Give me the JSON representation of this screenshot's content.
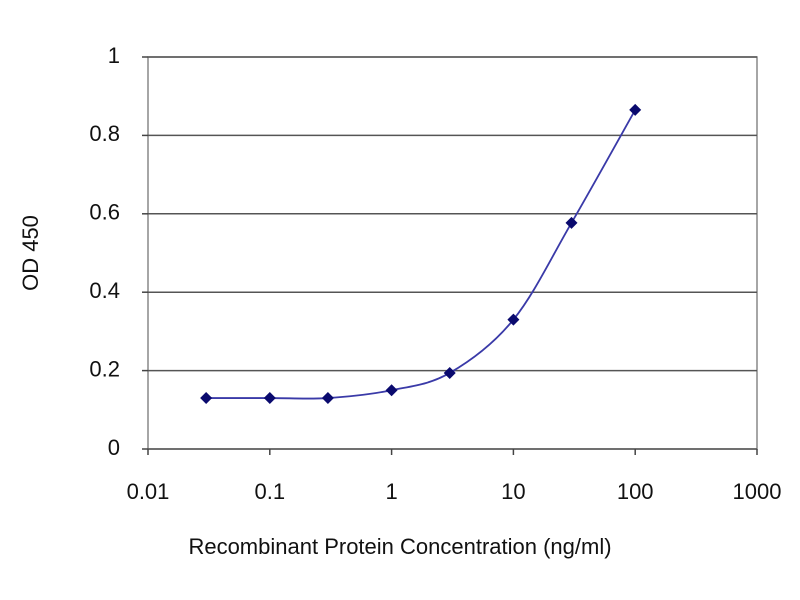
{
  "chart_data": {
    "type": "line",
    "x_label": "Recombinant Protein Concentration (ng/ml)",
    "y_label": "OD 450",
    "x": [
      0.03,
      0.1,
      0.3,
      1,
      3,
      10,
      30,
      100
    ],
    "values": [
      0.13,
      0.13,
      0.13,
      0.15,
      0.194,
      0.33,
      0.577,
      0.865
    ],
    "color": "#3a3aa8",
    "marker_color": "#0a0a6e",
    "x_log": true,
    "xlim": [
      0.01,
      1000
    ],
    "xticks": [
      0.01,
      0.1,
      1,
      10,
      100,
      1000
    ],
    "ylim": [
      0,
      1
    ],
    "yticks": [
      0,
      0.2,
      0.4,
      0.6,
      0.8,
      1
    ],
    "grid": "y"
  }
}
